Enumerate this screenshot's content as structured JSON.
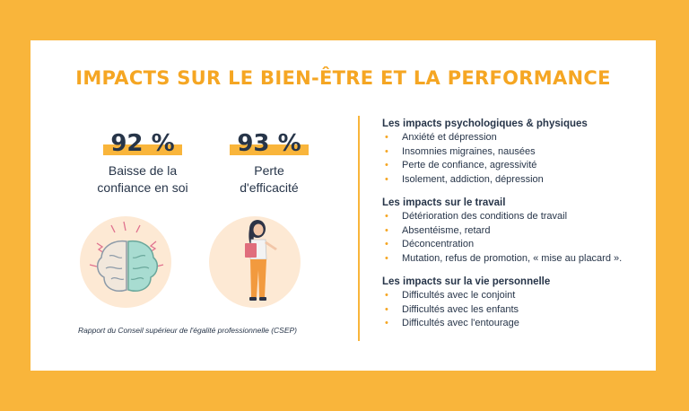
{
  "title": "IMPACTS SUR LE BIEN-ÊTRE ET LA PERFORMANCE",
  "stats": [
    {
      "value": "92 %",
      "label": "Baisse de la\nconfiance en soi",
      "icon": "brain-icon"
    },
    {
      "value": "93 %",
      "label": "Perte\nd'efficacité",
      "icon": "woman-with-folder-icon"
    }
  ],
  "source": "Rapport du Conseil supérieur de l'égalité professionnelle (CSEP)",
  "sections": [
    {
      "title": "Les impacts psychologiques & physiques",
      "items": [
        "Anxiété et dépression",
        "Insomnies migraines, nausées",
        "Perte de confiance, agressivité",
        "Isolement, addiction, dépression"
      ]
    },
    {
      "title": "Les impacts sur le travail",
      "items": [
        "Détérioration des conditions de travail",
        "Absentéisme, retard",
        "Déconcentration",
        "Mutation, refus de promotion, « mise au placard »."
      ]
    },
    {
      "title": "Les impacts sur la vie personnelle",
      "items": [
        "Difficultés avec le conjoint",
        "Difficultés avec les enfants",
        "Difficultés avec l'entourage"
      ]
    }
  ],
  "colors": {
    "background": "#f9b53b",
    "accent": "#f5a623",
    "text": "#273549",
    "blob": "#fde9d4"
  }
}
